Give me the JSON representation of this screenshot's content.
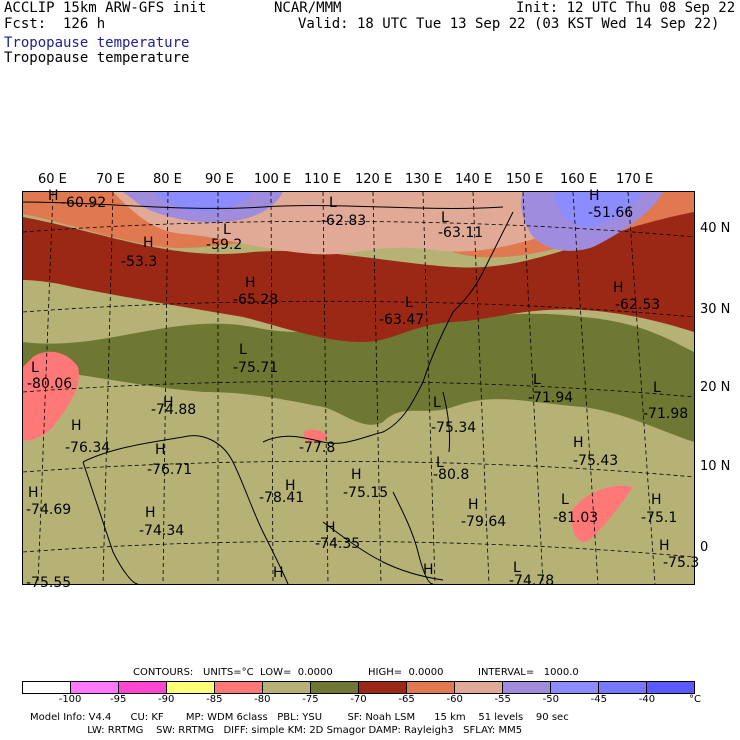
{
  "header": {
    "model": "ACCLIP 15km ARW-GFS init",
    "fcst": "Fcst:  126 h",
    "center": "NCAR/MMM",
    "init": "Init: 12 UTC Thu 08 Sep 22",
    "valid": "Valid: 18 UTC Tue 13 Sep 22 (03 KST Wed 14 Sep 22)",
    "field1": "Tropopause temperature",
    "field2": "Tropopause temperature"
  },
  "longitudes": [
    "60 E",
    "70 E",
    "80 E",
    "90 E",
    "100 E",
    "110 E",
    "120 E",
    "130 E",
    "140 E",
    "150 E",
    "160 E",
    "170 E"
  ],
  "latitudes": [
    "40 N",
    "30 N",
    "20 N",
    "10 N",
    "0"
  ],
  "map_labels": {
    "markers": [
      "H",
      "H",
      "H",
      "H",
      "L",
      "L",
      "L",
      "L",
      "L",
      "H",
      "L",
      "L",
      "H",
      "L",
      "L",
      "H",
      "H",
      "H",
      "H",
      "H",
      "H",
      "H",
      "H",
      "H",
      "L",
      "L",
      "H",
      "H",
      "H",
      "H",
      "L"
    ],
    "values": [
      "-60.92",
      "-62.83",
      "-63.11",
      "-51.66",
      "-59.2",
      "-53.3",
      "-65.28",
      "-62.53",
      "-63.47",
      "-75.71",
      "-80.06",
      "-71.94",
      "-71.98",
      "-74.88",
      "-75.34",
      "-76.34",
      "-76.71",
      "-77.8",
      "-80.8",
      "-75.43",
      "-78.41",
      "-75.15",
      "-79.64",
      "-81.03",
      "-74.69",
      "-74.34",
      "-74.35",
      "-75.1",
      "-75.55",
      "-74.78",
      "-75.3"
    ]
  },
  "contours_line": {
    "contours": "CONTOURS:",
    "units": "UNITS=°C",
    "low": "LOW=  0.0000",
    "high": "HIGH=  0.0000",
    "interval": "INTERVAL=   1000.0"
  },
  "colorbar": {
    "colors": [
      "#ffffff",
      "#ff78ff",
      "#ff46d2",
      "#ffff78",
      "#ff7878",
      "#b6b276",
      "#6e7832",
      "#9b2814",
      "#e07850",
      "#e0aa96",
      "#a08cdc",
      "#8c8cff",
      "#7878ff",
      "#5a5aff"
    ],
    "ticks": [
      "-100",
      "-95",
      "-90",
      "-85",
      "-80",
      "-75",
      "-70",
      "-65",
      "-60",
      "-55",
      "-50",
      "-45",
      "-40",
      "°C"
    ]
  },
  "footer": {
    "line1": "Model Info: V4.4      CU: KF       MP: WDM 6class   PBL: YSU        SF: Noah LSM      15 km    51 levels    90 sec",
    "line2": "                  LW: RRTMG    SW: RRTMG   DIFF: simple KM: 2D Smagor DAMP: Rayleigh3   SFLAY: MM5"
  }
}
